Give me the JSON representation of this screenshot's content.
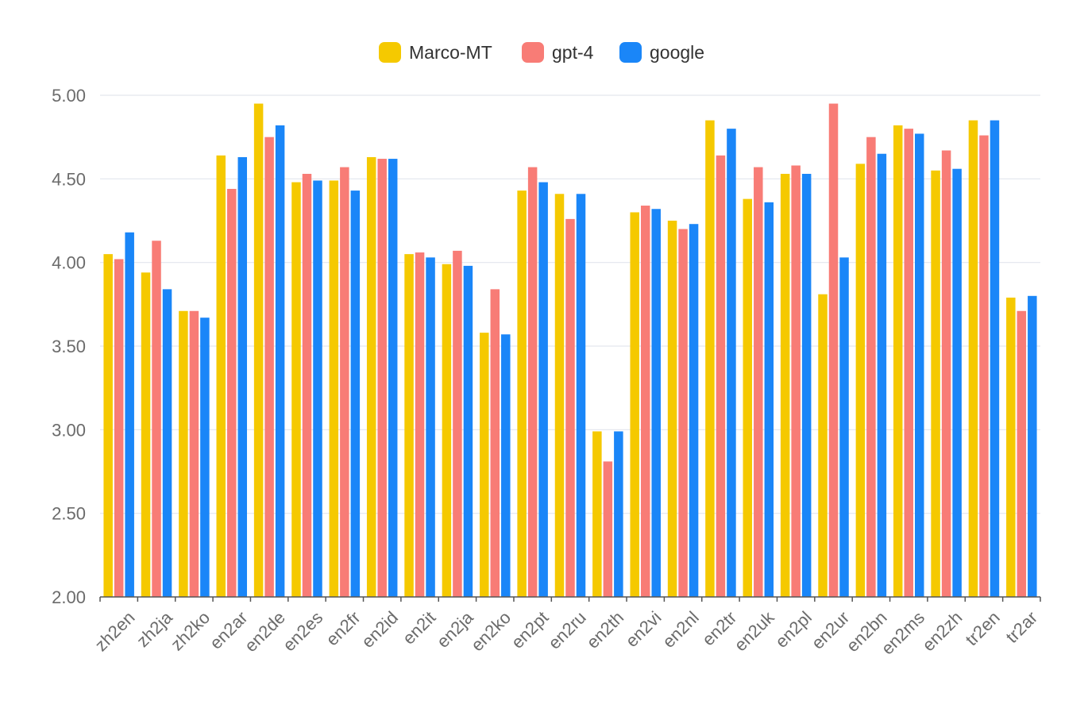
{
  "chart_data": {
    "type": "bar",
    "categories": [
      "zh2en",
      "zh2ja",
      "zh2ko",
      "en2ar",
      "en2de",
      "en2es",
      "en2fr",
      "en2id",
      "en2it",
      "en2ja",
      "en2ko",
      "en2pt",
      "en2ru",
      "en2th",
      "en2vi",
      "en2nl",
      "en2tr",
      "en2uk",
      "en2pl",
      "en2ur",
      "en2bn",
      "en2ms",
      "en2zh",
      "tr2en",
      "tr2ar"
    ],
    "series": [
      {
        "name": "Marco-MT",
        "color": "#f5c900",
        "values": [
          4.05,
          3.94,
          3.71,
          4.64,
          4.95,
          4.48,
          4.49,
          4.63,
          4.05,
          3.99,
          3.58,
          4.43,
          4.41,
          2.99,
          4.3,
          4.25,
          4.85,
          4.38,
          4.53,
          3.81,
          4.59,
          4.82,
          4.55,
          4.85,
          3.79
        ]
      },
      {
        "name": "gpt-4",
        "color": "#f87c76",
        "values": [
          4.02,
          4.13,
          3.71,
          4.44,
          4.75,
          4.53,
          4.57,
          4.62,
          4.06,
          4.07,
          3.84,
          4.57,
          4.26,
          2.81,
          4.34,
          4.2,
          4.64,
          4.57,
          4.58,
          4.95,
          4.75,
          4.8,
          4.67,
          4.76,
          3.71
        ]
      },
      {
        "name": "google",
        "color": "#1a86f8",
        "values": [
          4.18,
          3.84,
          3.67,
          4.63,
          4.82,
          4.49,
          4.43,
          4.62,
          4.03,
          3.98,
          3.57,
          4.48,
          4.41,
          2.99,
          4.32,
          4.23,
          4.8,
          4.36,
          4.53,
          4.03,
          4.65,
          4.77,
          4.56,
          4.85,
          3.8
        ]
      }
    ],
    "yticks": [
      "2.00",
      "2.50",
      "3.00",
      "3.50",
      "4.00",
      "4.50",
      "5.00"
    ],
    "ylim": [
      2.0,
      5.0
    ],
    "grid": true,
    "legend_position": "top-center",
    "title": "",
    "xlabel": "",
    "ylabel": ""
  }
}
